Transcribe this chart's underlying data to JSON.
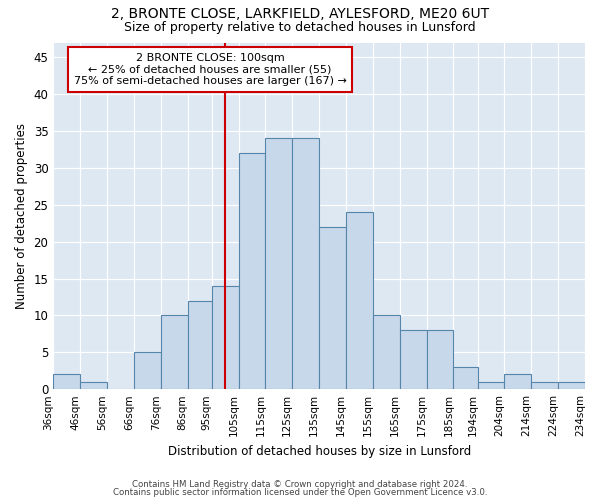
{
  "title_line1": "2, BRONTE CLOSE, LARKFIELD, AYLESFORD, ME20 6UT",
  "title_line2": "Size of property relative to detached houses in Lunsford",
  "xlabel": "Distribution of detached houses by size in Lunsford",
  "ylabel": "Number of detached properties",
  "bin_labels": [
    "36sqm",
    "46sqm",
    "56sqm",
    "66sqm",
    "76sqm",
    "86sqm",
    "95sqm",
    "105sqm",
    "115sqm",
    "125sqm",
    "135sqm",
    "145sqm",
    "155sqm",
    "165sqm",
    "175sqm",
    "185sqm",
    "194sqm",
    "204sqm",
    "214sqm",
    "224sqm",
    "234sqm"
  ],
  "bin_edges": [
    36,
    46,
    56,
    66,
    76,
    86,
    95,
    105,
    115,
    125,
    135,
    145,
    155,
    165,
    175,
    185,
    194,
    204,
    214,
    224,
    234
  ],
  "bar_heights": [
    2,
    1,
    0,
    5,
    10,
    12,
    14,
    32,
    34,
    34,
    22,
    24,
    10,
    8,
    8,
    3,
    1,
    2,
    1,
    1
  ],
  "bar_color": "#c8d8eb",
  "bar_edge_color": "#5585aa",
  "reference_line_x": 100,
  "ylim": [
    0,
    47
  ],
  "yticks": [
    0,
    5,
    10,
    15,
    20,
    25,
    30,
    35,
    40,
    45
  ],
  "annotation_title": "2 BRONTE CLOSE: 100sqm",
  "annotation_line1": "← 25% of detached houses are smaller (55)",
  "annotation_line2": "75% of semi-detached houses are larger (167) →",
  "annotation_box_color": "#ffffff",
  "annotation_box_edge_color": "#cc0000",
  "ref_line_color": "#cc0000",
  "footer_line1": "Contains HM Land Registry data © Crown copyright and database right 2024.",
  "footer_line2": "Contains public sector information licensed under the Open Government Licence v3.0.",
  "plot_bg_color": "#dde8f3"
}
